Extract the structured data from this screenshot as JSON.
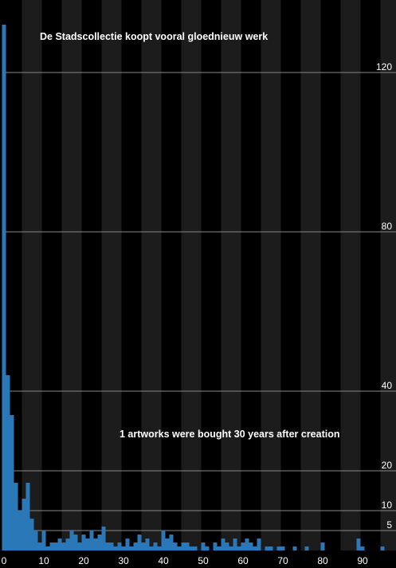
{
  "chart_data": {
    "type": "bar",
    "title": "De Stadscollectie koopt vooral gloednieuw werk",
    "annotation": "1 artworks were bought 30 years after creation",
    "x": [
      0,
      1,
      2,
      3,
      4,
      5,
      6,
      7,
      8,
      9,
      10,
      11,
      12,
      13,
      14,
      15,
      16,
      17,
      18,
      19,
      20,
      21,
      22,
      23,
      24,
      25,
      26,
      27,
      28,
      29,
      30,
      31,
      32,
      33,
      34,
      35,
      36,
      37,
      38,
      39,
      40,
      41,
      42,
      43,
      44,
      45,
      46,
      47,
      48,
      49,
      50,
      51,
      52,
      53,
      54,
      55,
      56,
      57,
      58,
      59,
      60,
      61,
      62,
      63,
      64,
      65,
      66,
      67,
      68,
      69,
      70,
      71,
      72,
      73,
      74,
      75,
      76,
      77,
      78,
      79,
      80,
      81,
      82,
      83,
      84,
      85,
      86,
      87,
      88,
      89,
      90,
      91,
      92,
      93,
      94,
      95
    ],
    "values": [
      132,
      44,
      34,
      17,
      10,
      13,
      17,
      8,
      5,
      2,
      5,
      1,
      2,
      2,
      3,
      2,
      3,
      5,
      4,
      2,
      4,
      3,
      5,
      3,
      4,
      6,
      2,
      2,
      1,
      2,
      1,
      3,
      1,
      2,
      4,
      2,
      3,
      1,
      2,
      1,
      5,
      3,
      4,
      2,
      1,
      2,
      2,
      1,
      1,
      0,
      2,
      1,
      0,
      2,
      1,
      3,
      2,
      1,
      3,
      1,
      2,
      3,
      2,
      1,
      3,
      0,
      1,
      1,
      0,
      1,
      1,
      0,
      0,
      1,
      0,
      0,
      1,
      0,
      0,
      0,
      2,
      0,
      0,
      0,
      0,
      0,
      0,
      0,
      0,
      3,
      1,
      0,
      0,
      0,
      0,
      1
    ],
    "color": "#2a78b8",
    "xlim": [
      -1,
      98.4
    ],
    "xticks": [
      0,
      10,
      20,
      30,
      40,
      50,
      60,
      70,
      80,
      90
    ],
    "ylim": [
      0,
      138.2
    ],
    "yticks": [
      5,
      10,
      20,
      40,
      80,
      120
    ],
    "grid": true
  }
}
